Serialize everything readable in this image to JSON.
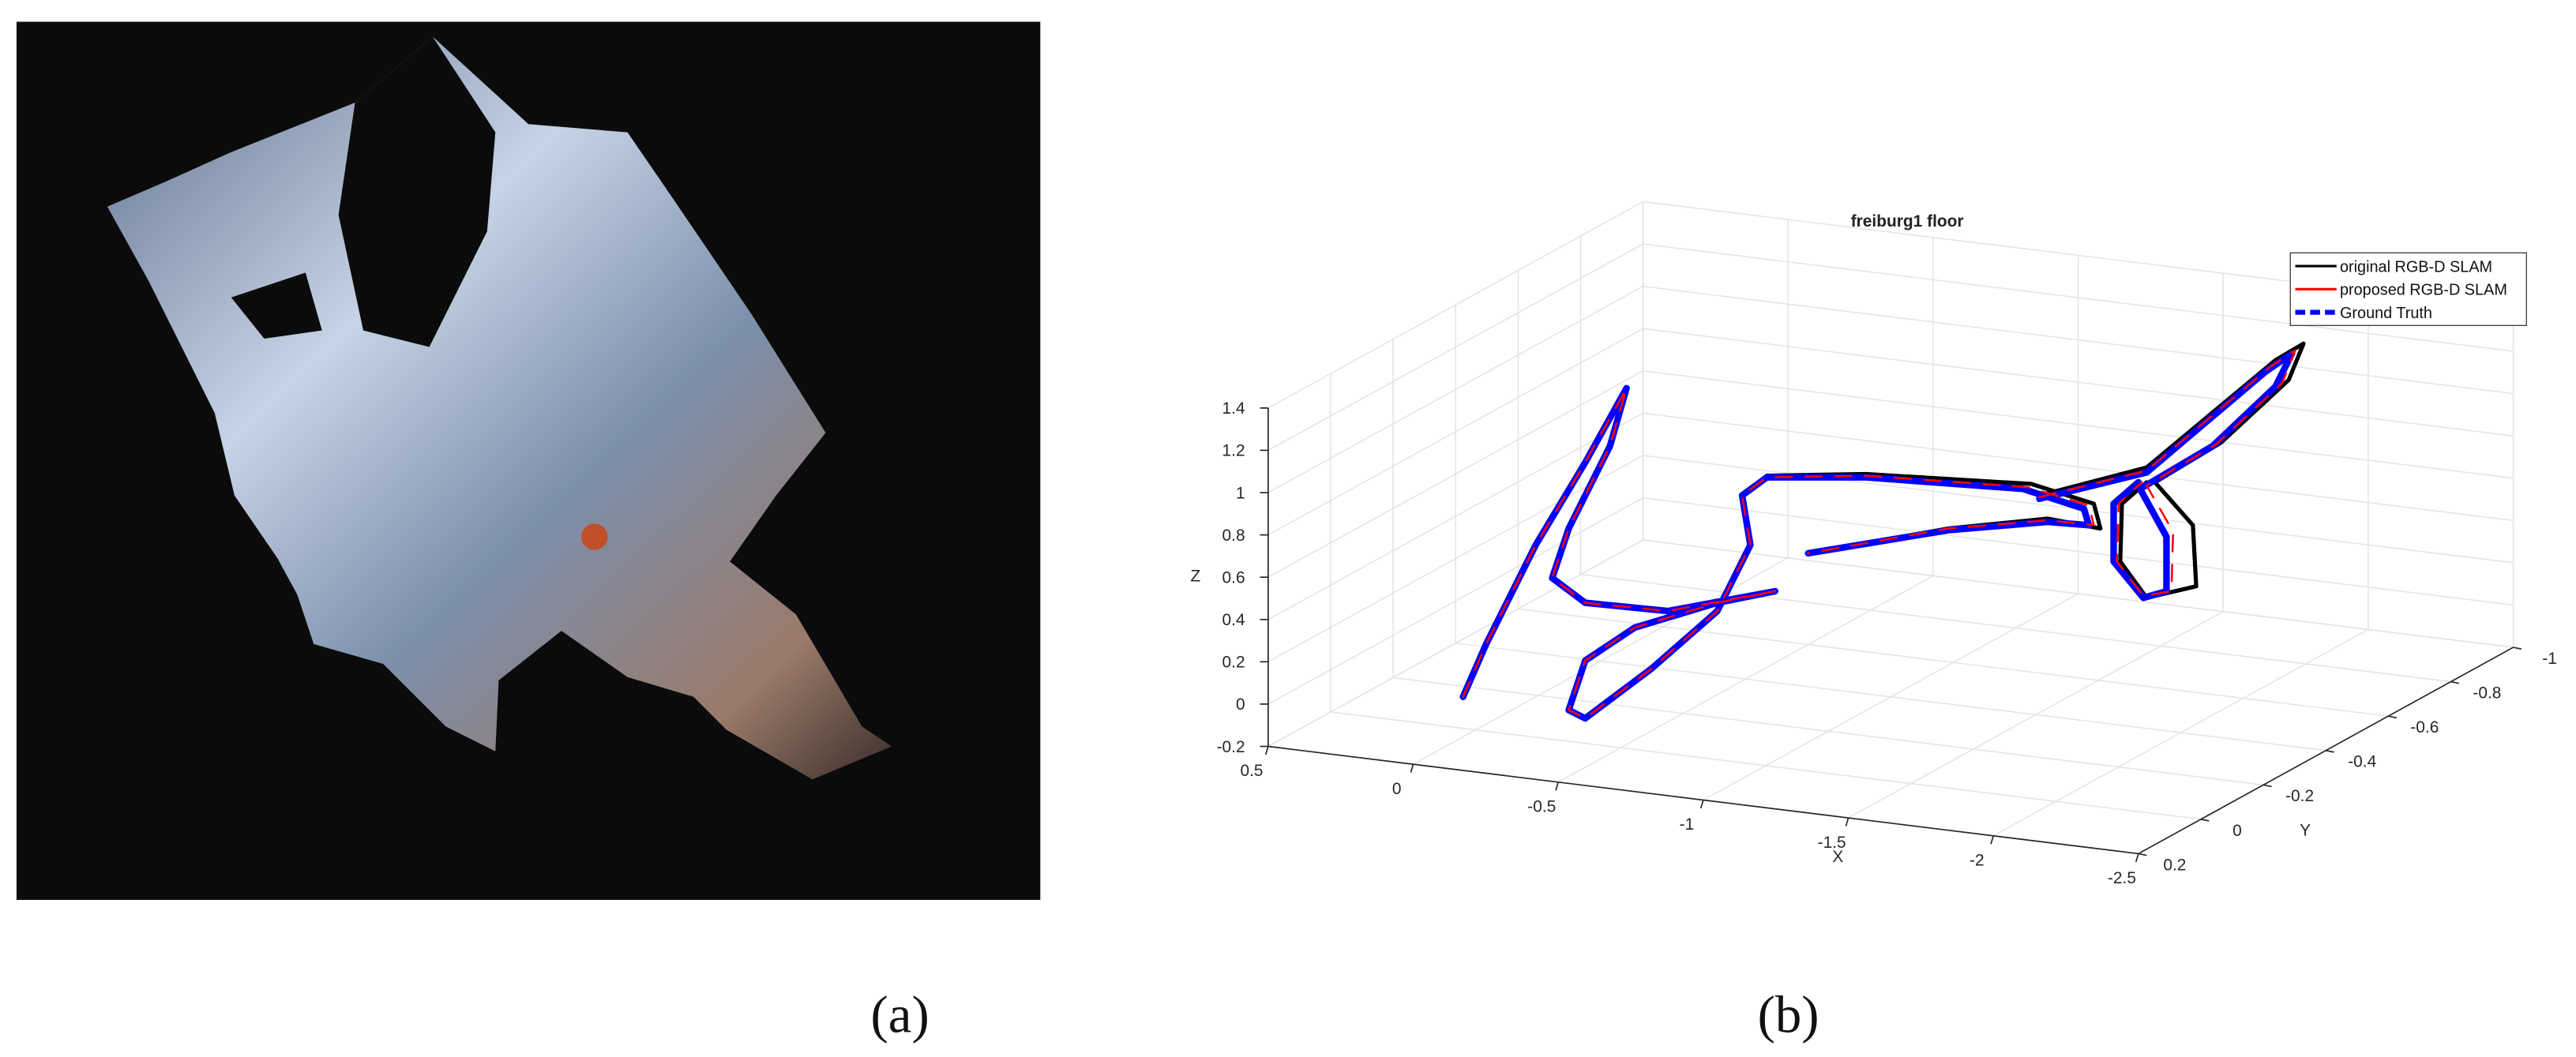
{
  "panels": [
    {
      "label": "(a)"
    },
    {
      "label": "(b)"
    }
  ],
  "chart_data": {
    "type": "line3d",
    "title": "freiburg1 floor",
    "xlabel": "X",
    "ylabel": "Y",
    "zlabel": "Z",
    "xlim": [
      0.5,
      -2.5
    ],
    "ylim": [
      0.2,
      -1
    ],
    "zlim": [
      -0.2,
      1.4
    ],
    "xticks": [
      0.5,
      0,
      -0.5,
      -1,
      -1.5,
      -2,
      -2.5
    ],
    "yticks": [
      0.2,
      0,
      -0.2,
      -0.4,
      -0.6,
      -0.8,
      -1
    ],
    "zticks": [
      -0.2,
      0,
      0.2,
      0.4,
      0.6,
      0.8,
      1,
      1.2,
      1.4
    ],
    "grid": true,
    "legend": "northeast",
    "series": [
      {
        "name": "original RGB-D SLAM",
        "color": "#000000"
      },
      {
        "name": "proposed RGB-D SLAM",
        "color": "#ff0000"
      },
      {
        "name": "Ground Truth",
        "color": "#0000ff"
      }
    ]
  }
}
